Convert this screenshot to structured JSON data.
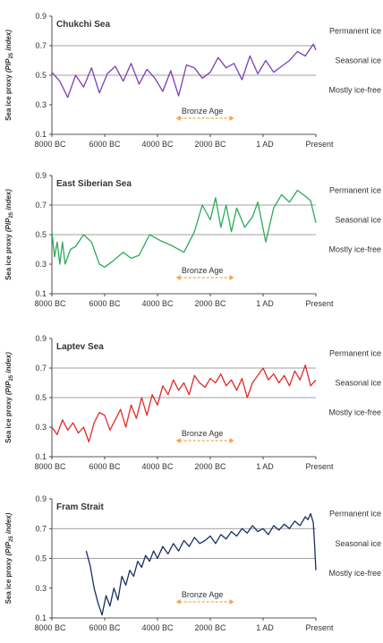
{
  "figure": {
    "ylabel_prefix": "Sea ice proxy ",
    "ylabel_italic": "(PIP",
    "ylabel_sub": "25",
    "ylabel_suffix": " index)",
    "xticks": [
      "8000 BC",
      "6000 BC",
      "4000 BC",
      "2000 BC",
      "1 AD",
      "Present"
    ],
    "yticks": [
      "0.9",
      "0.7",
      "0.5",
      "0.3",
      "0.1"
    ],
    "zone_labels": [
      "Permanent ice",
      "Seasonal ice",
      "Mostly ice-free"
    ],
    "annotation": "Bronze Age",
    "annotation_color": "#f5a54a",
    "threshold_color": "#808080"
  },
  "chart_data": [
    {
      "type": "line",
      "title": "Chukchi Sea",
      "color": "#7b3fb5",
      "ylim": [
        0.1,
        0.9
      ],
      "x_unit": "years (negative = BC)",
      "x": [
        -8000,
        -7700,
        -7400,
        -7100,
        -6800,
        -6500,
        -6200,
        -5900,
        -5600,
        -5300,
        -5000,
        -4700,
        -4400,
        -4100,
        -3800,
        -3500,
        -3200,
        -2900,
        -2600,
        -2300,
        -2000,
        -1700,
        -1400,
        -1100,
        -800,
        -500,
        -200,
        100,
        400,
        700,
        1000,
        1300,
        1600,
        1900,
        2000
      ],
      "values": [
        0.52,
        0.46,
        0.35,
        0.5,
        0.42,
        0.55,
        0.38,
        0.51,
        0.56,
        0.46,
        0.58,
        0.44,
        0.54,
        0.48,
        0.39,
        0.53,
        0.36,
        0.57,
        0.55,
        0.48,
        0.52,
        0.62,
        0.55,
        0.58,
        0.47,
        0.63,
        0.51,
        0.6,
        0.52,
        0.56,
        0.6,
        0.66,
        0.63,
        0.71,
        0.67
      ]
    },
    {
      "type": "line",
      "title": "East Siberian Sea",
      "color": "#2bab5a",
      "ylim": [
        0.1,
        0.9
      ],
      "x_unit": "years (negative = BC)",
      "x": [
        -8000,
        -7900,
        -7800,
        -7700,
        -7600,
        -7500,
        -7300,
        -7100,
        -6800,
        -6500,
        -6200,
        -6000,
        -5700,
        -5300,
        -5000,
        -4700,
        -4300,
        -3900,
        -3500,
        -3000,
        -2600,
        -2300,
        -2000,
        -1800,
        -1600,
        -1400,
        -1200,
        -1000,
        -700,
        -400,
        -200,
        100,
        400,
        700,
        1000,
        1300,
        1600,
        1800,
        2000
      ],
      "values": [
        0.52,
        0.35,
        0.45,
        0.3,
        0.45,
        0.3,
        0.4,
        0.42,
        0.5,
        0.45,
        0.3,
        0.28,
        0.32,
        0.38,
        0.34,
        0.36,
        0.5,
        0.46,
        0.43,
        0.38,
        0.52,
        0.7,
        0.6,
        0.75,
        0.55,
        0.7,
        0.52,
        0.68,
        0.55,
        0.62,
        0.72,
        0.45,
        0.68,
        0.77,
        0.72,
        0.8,
        0.76,
        0.73,
        0.58
      ]
    },
    {
      "type": "line",
      "title": "Laptev Sea",
      "color": "#e22a2a",
      "ylim": [
        0.1,
        0.9
      ],
      "x_unit": "years (negative = BC)",
      "x": [
        -8000,
        -7800,
        -7600,
        -7400,
        -7200,
        -7000,
        -6800,
        -6600,
        -6400,
        -6200,
        -6000,
        -5800,
        -5600,
        -5400,
        -5200,
        -5000,
        -4800,
        -4600,
        -4400,
        -4200,
        -4000,
        -3800,
        -3600,
        -3400,
        -3200,
        -3000,
        -2800,
        -2600,
        -2400,
        -2200,
        -2000,
        -1800,
        -1600,
        -1400,
        -1200,
        -1000,
        -800,
        -600,
        -400,
        -200,
        0,
        200,
        400,
        600,
        800,
        1000,
        1200,
        1400,
        1600,
        1800,
        2000
      ],
      "values": [
        0.3,
        0.25,
        0.35,
        0.28,
        0.33,
        0.26,
        0.3,
        0.2,
        0.33,
        0.4,
        0.38,
        0.28,
        0.35,
        0.42,
        0.3,
        0.45,
        0.36,
        0.5,
        0.38,
        0.52,
        0.45,
        0.58,
        0.52,
        0.62,
        0.55,
        0.6,
        0.52,
        0.65,
        0.6,
        0.57,
        0.63,
        0.6,
        0.66,
        0.58,
        0.62,
        0.55,
        0.63,
        0.5,
        0.6,
        0.65,
        0.7,
        0.62,
        0.66,
        0.6,
        0.65,
        0.58,
        0.68,
        0.62,
        0.72,
        0.58,
        0.62
      ]
    },
    {
      "type": "line",
      "title": "Fram Strait",
      "color": "#1c2f63",
      "ylim": [
        0.1,
        0.9
      ],
      "x_unit": "years (negative = BC)",
      "x": [
        -6700,
        -6550,
        -6400,
        -6250,
        -6100,
        -5950,
        -5800,
        -5650,
        -5500,
        -5350,
        -5200,
        -5050,
        -4900,
        -4750,
        -4600,
        -4450,
        -4300,
        -4150,
        -4000,
        -3800,
        -3600,
        -3400,
        -3200,
        -3000,
        -2800,
        -2600,
        -2400,
        -2200,
        -2000,
        -1800,
        -1600,
        -1400,
        -1200,
        -1000,
        -800,
        -600,
        -400,
        -200,
        0,
        200,
        400,
        600,
        800,
        1000,
        1200,
        1400,
        1600,
        1700,
        1800,
        1900,
        1950,
        2000
      ],
      "values": [
        0.55,
        0.45,
        0.3,
        0.2,
        0.12,
        0.25,
        0.18,
        0.3,
        0.22,
        0.38,
        0.32,
        0.42,
        0.38,
        0.48,
        0.44,
        0.52,
        0.48,
        0.55,
        0.5,
        0.58,
        0.53,
        0.6,
        0.55,
        0.62,
        0.58,
        0.64,
        0.6,
        0.62,
        0.65,
        0.6,
        0.66,
        0.63,
        0.68,
        0.65,
        0.7,
        0.67,
        0.72,
        0.68,
        0.7,
        0.66,
        0.72,
        0.69,
        0.73,
        0.7,
        0.75,
        0.72,
        0.78,
        0.76,
        0.8,
        0.74,
        0.6,
        0.42
      ]
    }
  ]
}
